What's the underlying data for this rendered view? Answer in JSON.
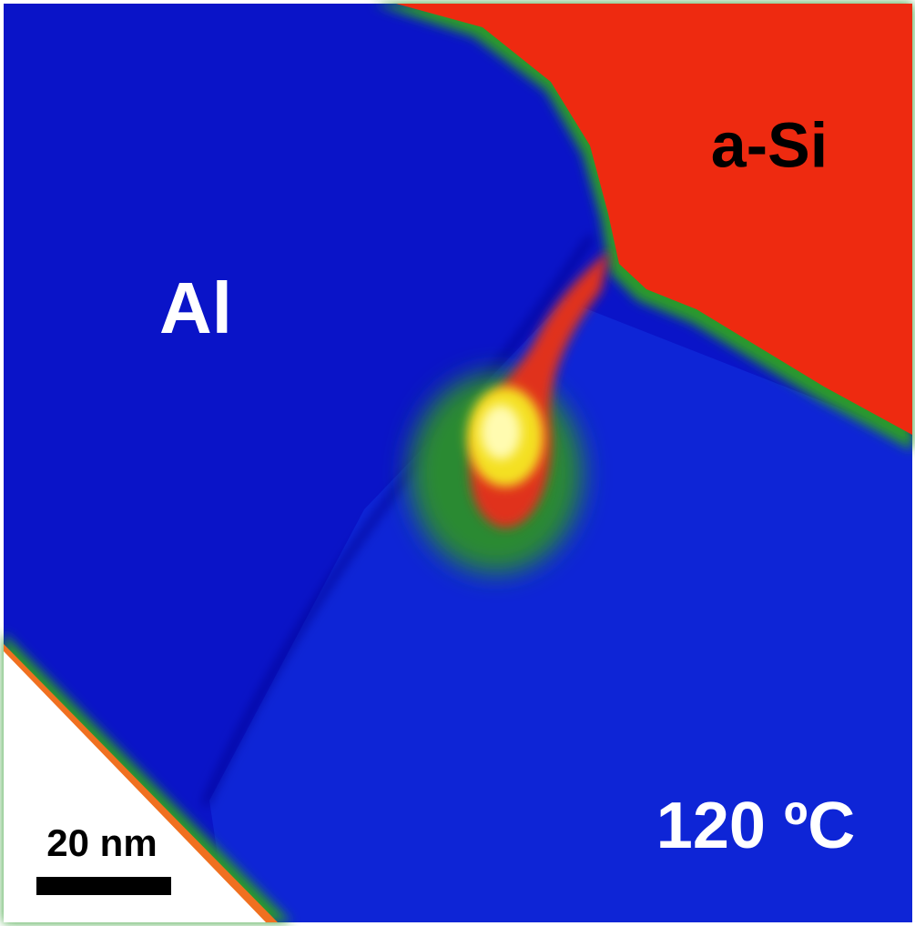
{
  "labels": {
    "phase_top": "a-Si",
    "phase_left": "Al",
    "temperature": "120 ºC",
    "scale_bar": "20 nm"
  }
}
